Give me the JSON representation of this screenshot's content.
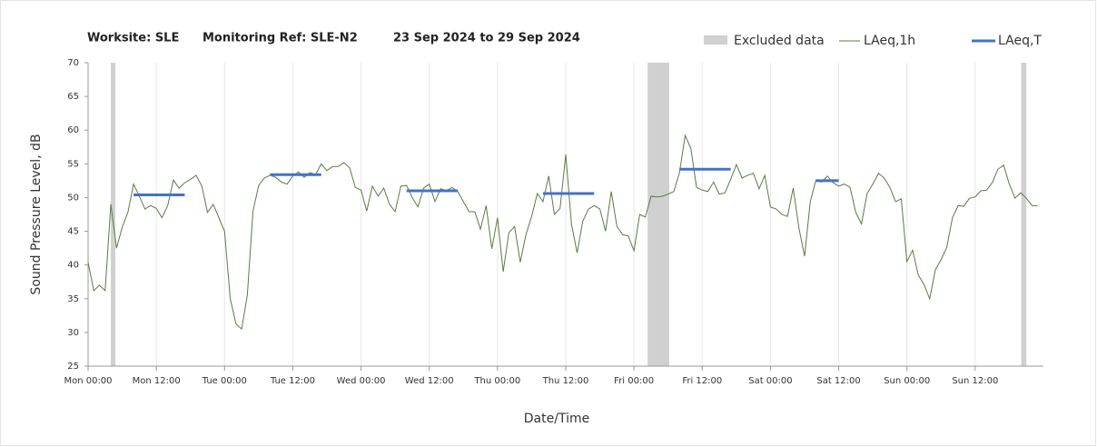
{
  "chart_data": {
    "type": "line",
    "title": [
      "Worksite: SLE",
      "Monitoring Ref: SLE-N2",
      "23 Sep 2024 to 29 Sep 2024"
    ],
    "xlabel": "Date/Time",
    "ylabel": "Sound Pressure Level, dB",
    "xlim": [
      0,
      168
    ],
    "ylim": [
      25,
      70
    ],
    "yticks": [
      25,
      30,
      35,
      40,
      45,
      50,
      55,
      60,
      65,
      70
    ],
    "xticks": [
      {
        "value": 0,
        "label": "Mon 00:00"
      },
      {
        "value": 12,
        "label": "Mon 12:00"
      },
      {
        "value": 24,
        "label": "Tue 00:00"
      },
      {
        "value": 36,
        "label": "Tue 12:00"
      },
      {
        "value": 48,
        "label": "Wed 00:00"
      },
      {
        "value": 60,
        "label": "Wed 12:00"
      },
      {
        "value": 72,
        "label": "Thu 00:00"
      },
      {
        "value": 84,
        "label": "Thu 12:00"
      },
      {
        "value": 96,
        "label": "Fri 00:00"
      },
      {
        "value": 108,
        "label": "Fri 12:00"
      },
      {
        "value": 120,
        "label": "Sat 00:00"
      },
      {
        "value": 132,
        "label": "Sat 12:00"
      },
      {
        "value": 144,
        "label": "Sun 00:00"
      },
      {
        "value": 156,
        "label": "Sun 12:00"
      }
    ],
    "grid": "x",
    "excluded": {
      "name": "Excluded data",
      "color": "#d0d0d0",
      "start": [
        4,
        98.4,
        164.1
      ],
      "end": [
        4.8,
        102.2,
        165
      ]
    },
    "series": [
      {
        "name": "LAeq,1h",
        "color": "#5b7a47",
        "x": [
          0,
          1,
          2,
          3,
          4,
          5,
          6,
          7,
          8,
          9,
          10,
          11,
          12,
          13,
          14,
          15,
          16,
          17,
          18,
          19,
          20,
          21,
          22,
          23,
          24,
          25,
          26,
          27,
          28,
          29,
          30,
          31,
          32,
          33,
          34,
          35,
          36,
          37,
          38,
          39,
          40,
          41,
          42,
          43,
          44,
          45,
          46,
          47,
          48,
          49,
          50,
          51,
          52,
          53,
          54,
          55,
          56,
          57,
          58,
          59,
          60,
          61,
          62,
          63,
          64,
          65,
          66,
          67,
          68,
          69,
          70,
          71,
          72,
          73,
          74,
          75,
          76,
          77,
          78,
          79,
          80,
          81,
          82,
          83,
          84,
          85,
          86,
          87,
          88,
          89,
          90,
          91,
          92,
          93,
          94,
          95,
          96,
          97,
          98,
          99,
          100,
          101,
          102,
          103,
          104,
          105,
          106,
          107,
          108,
          109,
          110,
          111,
          112,
          113,
          114,
          115,
          116,
          117,
          118,
          119,
          120,
          121,
          122,
          123,
          124,
          125,
          126,
          127,
          128,
          129,
          130,
          131,
          132,
          133,
          134,
          135,
          136,
          137,
          138,
          139,
          140,
          141,
          142,
          143,
          144,
          145,
          146,
          147,
          148,
          149,
          150,
          151,
          152,
          153,
          154,
          155,
          156,
          157,
          158,
          159,
          160,
          161,
          162,
          163,
          164,
          165,
          166,
          167
        ],
        "values": [
          40.4,
          36.2,
          37,
          36.2,
          49,
          42.5,
          45.6,
          47.8,
          52,
          50.2,
          48.3,
          48.8,
          48.4,
          47,
          48.8,
          52.6,
          51.4,
          52.2,
          52.7,
          53.3,
          51.7,
          47.8,
          49,
          47,
          45,
          35,
          31.3,
          30.5,
          35.5,
          48,
          51.8,
          52.9,
          53.3,
          53,
          52.3,
          52,
          53.2,
          53.8,
          53,
          53.7,
          53.4,
          55,
          54,
          54.6,
          54.6,
          55.2,
          54.4,
          51.5,
          51.1,
          48,
          51.7,
          50.2,
          51.4,
          49,
          47.9,
          51.7,
          51.8,
          50,
          48.6,
          51.4,
          52,
          49.4,
          51.3,
          51,
          51.5,
          50.9,
          49.4,
          47.9,
          47.9,
          45.3,
          48.8,
          42.4,
          47,
          39,
          44.8,
          45.7,
          40.4,
          44.5,
          47.2,
          50.6,
          49.4,
          53.2,
          47.5,
          48.4,
          56.4,
          46.1,
          41.8,
          46.5,
          48.3,
          48.8,
          48.3,
          45,
          50.9,
          45.7,
          44.5,
          44.3,
          42.1,
          47.5,
          47.1,
          50.2,
          50.1,
          50.2,
          50.5,
          50.9,
          53.7,
          59.2,
          57.3,
          51.5,
          51.1,
          50.9,
          52.3,
          50.5,
          50.7,
          52.7,
          54.9,
          52.9,
          53.3,
          53.6,
          51.3,
          53.3,
          48.6,
          48.3,
          47.5,
          47.2,
          51.4,
          45.5,
          41.3,
          49.4,
          52.6,
          52.3,
          53.2,
          52.2,
          51.7,
          52,
          51.5,
          47.8,
          46.1,
          50.6,
          52,
          53.6,
          52.9,
          51.5,
          49.4,
          49.8,
          40.5,
          42.2,
          38.5,
          37.1,
          35,
          39.3,
          40.8,
          42.6,
          47,
          48.8,
          48.7,
          49.9,
          50.1,
          51,
          51.1,
          52.2,
          54.2,
          54.8,
          52,
          49.9,
          50.7,
          49.9,
          48.8,
          48.8
        ]
      },
      {
        "name": "LAeq,T",
        "color": "#4472c4",
        "x_start": [
          8,
          32,
          56,
          80,
          104,
          128
        ],
        "x_end": [
          17,
          41,
          65,
          89,
          113,
          132
        ],
        "values": [
          50.4,
          53.4,
          51,
          50.6,
          54.2,
          52.5
        ]
      }
    ]
  }
}
